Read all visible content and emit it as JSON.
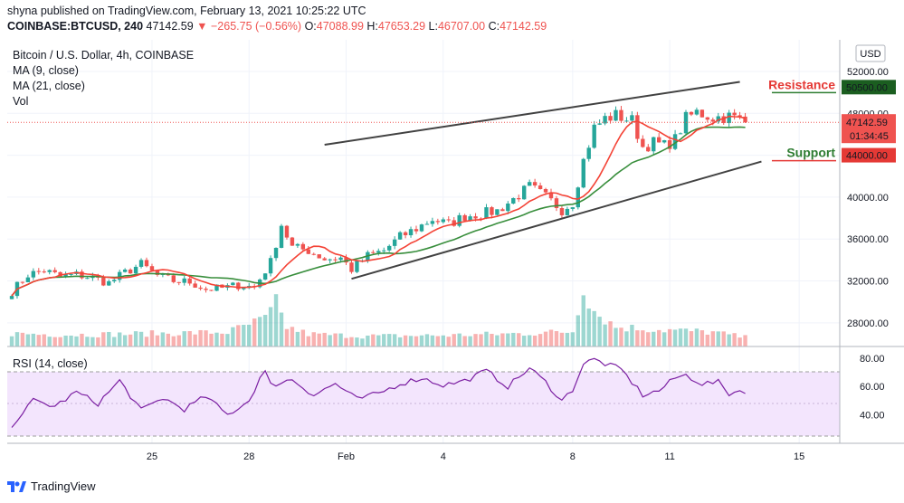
{
  "header": {
    "publish_line": "shyna published on TradingView.com, February 13, 2021 10:25:22 UTC",
    "symbol": "COINBASE:BTCUSD, 240",
    "last": "47142.59",
    "change": "−265.75 (−0.56%)",
    "o_label": "O:",
    "o": "47088.99",
    "h_label": "H:",
    "h": "47653.29",
    "l_label": "L:",
    "l": "46707.00",
    "c_label": "C:",
    "c": "47142.59"
  },
  "legend": {
    "title": "Bitcoin / U.S. Dollar, 4h, COINBASE",
    "ma9": "MA (9, close)",
    "ma21": "MA (21, close)",
    "vol": "Vol",
    "rsi": "RSI (14, close)"
  },
  "axis": {
    "currency": "USD",
    "price_ticks": [
      "52000.00",
      "48000.00",
      "44000.00",
      "40000.00",
      "36000.00",
      "32000.00",
      "28000.00"
    ],
    "rsi_ticks": [
      "80.00",
      "60.00",
      "40.00"
    ],
    "x_ticks": [
      "25",
      "28",
      "Feb",
      "4",
      "8",
      "11",
      "15"
    ]
  },
  "badges": {
    "resistance_value": "50500.00",
    "last_price": "47142.59",
    "countdown": "01:34:45",
    "support_value": "44000.00"
  },
  "annotations": {
    "resistance_label": "Resistance",
    "support_label": "Support"
  },
  "colors": {
    "up": "#26a69a",
    "down": "#ef5350",
    "ma9": "#f44336",
    "ma21": "#388e3c",
    "rsi": "#7b1fa2",
    "rsi_band": "#f3e5fd",
    "resistance": "#e53935",
    "support": "#2e7d32"
  },
  "footer": {
    "brand": "TradingView"
  },
  "chart_data": {
    "type": "candlestick",
    "interval": "4h",
    "currency": "USD",
    "ylim": [
      26000,
      54500
    ],
    "rsi_ylim": [
      20,
      85
    ],
    "x_tick_positions": [
      {
        "label": "25",
        "bar": 26
      },
      {
        "label": "28",
        "bar": 44
      },
      {
        "label": "Feb",
        "bar": 62
      },
      {
        "label": "4",
        "bar": 80
      },
      {
        "label": "8",
        "bar": 104
      },
      {
        "label": "11",
        "bar": 122
      },
      {
        "label": "15",
        "bar": 146
      }
    ],
    "resistance": 50500,
    "support": 44000,
    "last_price": 47142.59,
    "channel": {
      "upper": [
        {
          "bar": 58,
          "price": 45000
        },
        {
          "bar": 135,
          "price": 51000
        }
      ],
      "lower": [
        {
          "bar": 63,
          "price": 32200
        },
        {
          "bar": 139,
          "price": 43400
        }
      ]
    },
    "anchors": [
      [
        0,
        31000
      ],
      [
        3,
        32600
      ],
      [
        6,
        33000
      ],
      [
        9,
        32400
      ],
      [
        12,
        32600
      ],
      [
        15,
        32300
      ],
      [
        18,
        31800
      ],
      [
        21,
        32800
      ],
      [
        24,
        33600
      ],
      [
        27,
        32500
      ],
      [
        30,
        32000
      ],
      [
        33,
        31900
      ],
      [
        36,
        31200
      ],
      [
        39,
        31300
      ],
      [
        42,
        31600
      ],
      [
        45,
        31400
      ],
      [
        48,
        33800
      ],
      [
        50,
        37400
      ],
      [
        52,
        35200
      ],
      [
        55,
        34900
      ],
      [
        58,
        34100
      ],
      [
        61,
        34200
      ],
      [
        63,
        33100
      ],
      [
        66,
        34400
      ],
      [
        69,
        34900
      ],
      [
        72,
        36200
      ],
      [
        75,
        37000
      ],
      [
        78,
        37900
      ],
      [
        81,
        37400
      ],
      [
        84,
        38200
      ],
      [
        87,
        38400
      ],
      [
        90,
        38700
      ],
      [
        93,
        39800
      ],
      [
        96,
        41000
      ],
      [
        99,
        40000
      ],
      [
        102,
        38800
      ],
      [
        104,
        39500
      ],
      [
        106,
        43500
      ],
      [
        108,
        46600
      ],
      [
        110,
        47500
      ],
      [
        112,
        47800
      ],
      [
        115,
        47300
      ],
      [
        117,
        44800
      ],
      [
        119,
        45200
      ],
      [
        121,
        44900
      ],
      [
        123,
        45500
      ],
      [
        125,
        47500
      ],
      [
        127,
        48100
      ],
      [
        130,
        47600
      ],
      [
        133,
        47700
      ],
      [
        135,
        47400
      ],
      [
        136,
        47142.59
      ]
    ],
    "volume_anchors": [
      [
        0,
        2000
      ],
      [
        10,
        1800
      ],
      [
        20,
        1900
      ],
      [
        40,
        2200
      ],
      [
        47,
        4200
      ],
      [
        49,
        6500
      ],
      [
        51,
        3000
      ],
      [
        55,
        1900
      ],
      [
        65,
        1600
      ],
      [
        80,
        1700
      ],
      [
        95,
        2000
      ],
      [
        104,
        2300
      ],
      [
        106,
        9500
      ],
      [
        108,
        5500
      ],
      [
        112,
        3000
      ],
      [
        120,
        2600
      ],
      [
        130,
        2200
      ],
      [
        136,
        1400
      ]
    ],
    "rsi_anchors": [
      [
        0,
        33
      ],
      [
        4,
        50
      ],
      [
        8,
        46
      ],
      [
        12,
        56
      ],
      [
        16,
        48
      ],
      [
        20,
        64
      ],
      [
        24,
        43
      ],
      [
        28,
        52
      ],
      [
        32,
        44
      ],
      [
        36,
        53
      ],
      [
        40,
        40
      ],
      [
        44,
        50
      ],
      [
        46,
        66
      ],
      [
        47,
        70
      ],
      [
        48,
        61
      ],
      [
        52,
        65
      ],
      [
        56,
        54
      ],
      [
        60,
        62
      ],
      [
        64,
        51
      ],
      [
        68,
        55
      ],
      [
        72,
        62
      ],
      [
        76,
        66
      ],
      [
        80,
        61
      ],
      [
        84,
        64
      ],
      [
        88,
        71
      ],
      [
        92,
        60
      ],
      [
        96,
        73
      ],
      [
        99,
        63
      ],
      [
        102,
        50
      ],
      [
        104,
        58
      ],
      [
        106,
        76
      ],
      [
        108,
        79
      ],
      [
        110,
        76
      ],
      [
        113,
        72
      ],
      [
        117,
        54
      ],
      [
        120,
        57
      ],
      [
        123,
        66
      ],
      [
        125,
        68
      ],
      [
        128,
        62
      ],
      [
        131,
        63
      ],
      [
        133,
        55
      ],
      [
        135,
        57
      ]
    ]
  }
}
